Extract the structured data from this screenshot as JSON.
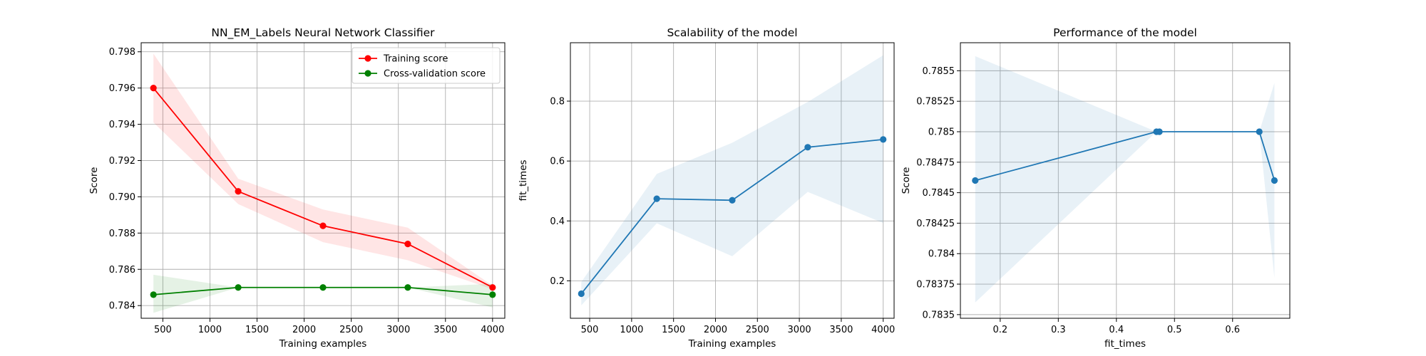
{
  "chart_data": [
    {
      "type": "line",
      "title": "NN_EM_Labels Neural Network Classifier",
      "xlabel": "Training examples",
      "ylabel": "Score",
      "xlim": [
        270,
        4130
      ],
      "ylim": [
        0.7833,
        0.7985
      ],
      "xticks": [
        500,
        1000,
        1500,
        2000,
        2500,
        3000,
        3500,
        4000
      ],
      "yticks": [
        0.784,
        0.786,
        0.788,
        0.79,
        0.792,
        0.794,
        0.796,
        0.798
      ],
      "ytick_decimals": 3,
      "grid": true,
      "legend": "top-right",
      "series": [
        {
          "name": "Training score",
          "color": "#ff0000",
          "band_color": "#ff0000",
          "x": [
            400,
            1300,
            2200,
            3100,
            4000
          ],
          "y": [
            0.796,
            0.7903,
            0.7884,
            0.7874,
            0.785
          ],
          "band_low": [
            0.7941,
            0.7896,
            0.7875,
            0.7865,
            0.7849
          ],
          "band_high": [
            0.7979,
            0.791,
            0.7893,
            0.7883,
            0.7851
          ]
        },
        {
          "name": "Cross-validation score",
          "color": "#008000",
          "band_color": "#008000",
          "x": [
            400,
            1300,
            2200,
            3100,
            4000
          ],
          "y": [
            0.7846,
            0.785,
            0.785,
            0.785,
            0.7846
          ],
          "band_low": [
            0.7836,
            0.785,
            0.785,
            0.785,
            0.7839
          ],
          "band_high": [
            0.7857,
            0.785,
            0.785,
            0.785,
            0.7852
          ]
        }
      ]
    },
    {
      "type": "line",
      "title": "Scalability of the model",
      "xlabel": "Training examples",
      "ylabel": "fit_times",
      "xlim": [
        270,
        4130
      ],
      "ylim": [
        0.075,
        0.995
      ],
      "xticks": [
        500,
        1000,
        1500,
        2000,
        2500,
        3000,
        3500,
        4000
      ],
      "yticks": [
        0.2,
        0.4,
        0.6,
        0.8
      ],
      "ytick_decimals": 1,
      "grid": true,
      "series": [
        {
          "color": "#1f77b4",
          "band_color": "#1f77b4",
          "x": [
            400,
            1300,
            2200,
            3100,
            4000
          ],
          "y": [
            0.157,
            0.474,
            0.469,
            0.646,
            0.672
          ],
          "band_low": [
            0.118,
            0.392,
            0.282,
            0.497,
            0.393
          ],
          "band_high": [
            0.196,
            0.557,
            0.661,
            0.797,
            0.953
          ]
        }
      ]
    },
    {
      "type": "line",
      "title": "Performance of the model",
      "xlabel": "fit_times",
      "ylabel": "Score",
      "xlim": [
        0.1315,
        0.6985
      ],
      "ylim": [
        0.78347,
        0.78573
      ],
      "xticks": [
        0.2,
        0.3,
        0.4,
        0.5,
        0.6
      ],
      "yticks": [
        0.7835,
        0.78375,
        0.784,
        0.78425,
        0.7845,
        0.78475,
        0.785,
        0.78525,
        0.7855
      ],
      "ytick_decimals": 5,
      "grid": true,
      "series": [
        {
          "color": "#1f77b4",
          "band_color": "#1f77b4",
          "x": [
            0.157,
            0.469,
            0.474,
            0.646,
            0.672
          ],
          "y": [
            0.7846,
            0.785,
            0.785,
            0.785,
            0.7846
          ],
          "band_low": [
            0.7836,
            0.785,
            0.785,
            0.785,
            0.7838
          ],
          "band_high": [
            0.78562,
            0.785,
            0.785,
            0.785,
            0.7854
          ]
        }
      ]
    }
  ]
}
